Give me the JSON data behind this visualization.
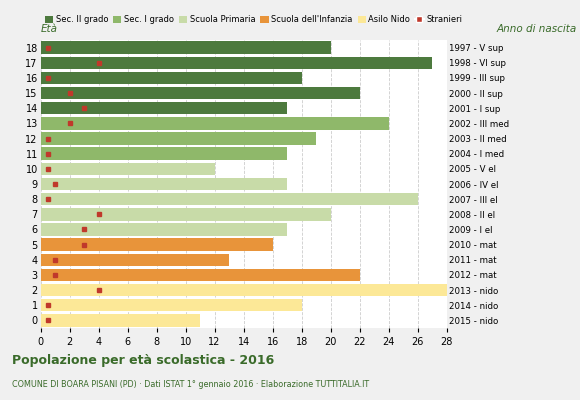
{
  "ages": [
    0,
    1,
    2,
    3,
    4,
    5,
    6,
    7,
    8,
    9,
    10,
    11,
    12,
    13,
    14,
    15,
    16,
    17,
    18
  ],
  "years": [
    "2015 - nido",
    "2014 - nido",
    "2013 - nido",
    "2012 - mat",
    "2011 - mat",
    "2010 - mat",
    "2009 - I el",
    "2008 - II el",
    "2007 - III el",
    "2006 - IV el",
    "2005 - V el",
    "2004 - I med",
    "2003 - II med",
    "2002 - III med",
    "2001 - I sup",
    "2000 - II sup",
    "1999 - III sup",
    "1998 - VI sup",
    "1997 - V sup"
  ],
  "bar_values": [
    11,
    18,
    28,
    22,
    13,
    16,
    17,
    20,
    26,
    17,
    12,
    17,
    19,
    24,
    17,
    22,
    18,
    27,
    20
  ],
  "stranieri": [
    0.5,
    0.5,
    4,
    1,
    1,
    3,
    3,
    4,
    0.5,
    1,
    0.5,
    0.5,
    0.5,
    2,
    3,
    2,
    0.5,
    4,
    0.5
  ],
  "bar_colors": [
    "#fce897",
    "#fce897",
    "#fce897",
    "#e8943a",
    "#e8943a",
    "#e8943a",
    "#c8dba8",
    "#c8dba8",
    "#c8dba8",
    "#c8dba8",
    "#c8dba8",
    "#8fb86a",
    "#8fb86a",
    "#8fb86a",
    "#4d7a3e",
    "#4d7a3e",
    "#4d7a3e",
    "#4d7a3e",
    "#4d7a3e"
  ],
  "stranieri_color": "#c0392b",
  "legend_labels": [
    "Sec. II grado",
    "Sec. I grado",
    "Scuola Primaria",
    "Scuola dell'Infanzia",
    "Asilo Nido",
    "Stranieri"
  ],
  "legend_colors": [
    "#4d7a3e",
    "#8fb86a",
    "#c8dba8",
    "#e8943a",
    "#fce897",
    "#c0392b"
  ],
  "title": "Popolazione per età scolastica - 2016",
  "subtitle": "COMUNE DI BOARA PISANI (PD) · Dati ISTAT 1° gennaio 2016 · Elaborazione TUTTITALIA.IT",
  "xlabel_eta": "Età",
  "xlabel_anno": "Anno di nascita",
  "xlim": [
    0,
    28
  ],
  "xticks": [
    0,
    2,
    4,
    6,
    8,
    10,
    12,
    14,
    16,
    18,
    20,
    22,
    24,
    26,
    28
  ],
  "bg_color": "#f0f0f0",
  "bar_bg_color": "#ffffff",
  "grid_color": "#cccccc"
}
